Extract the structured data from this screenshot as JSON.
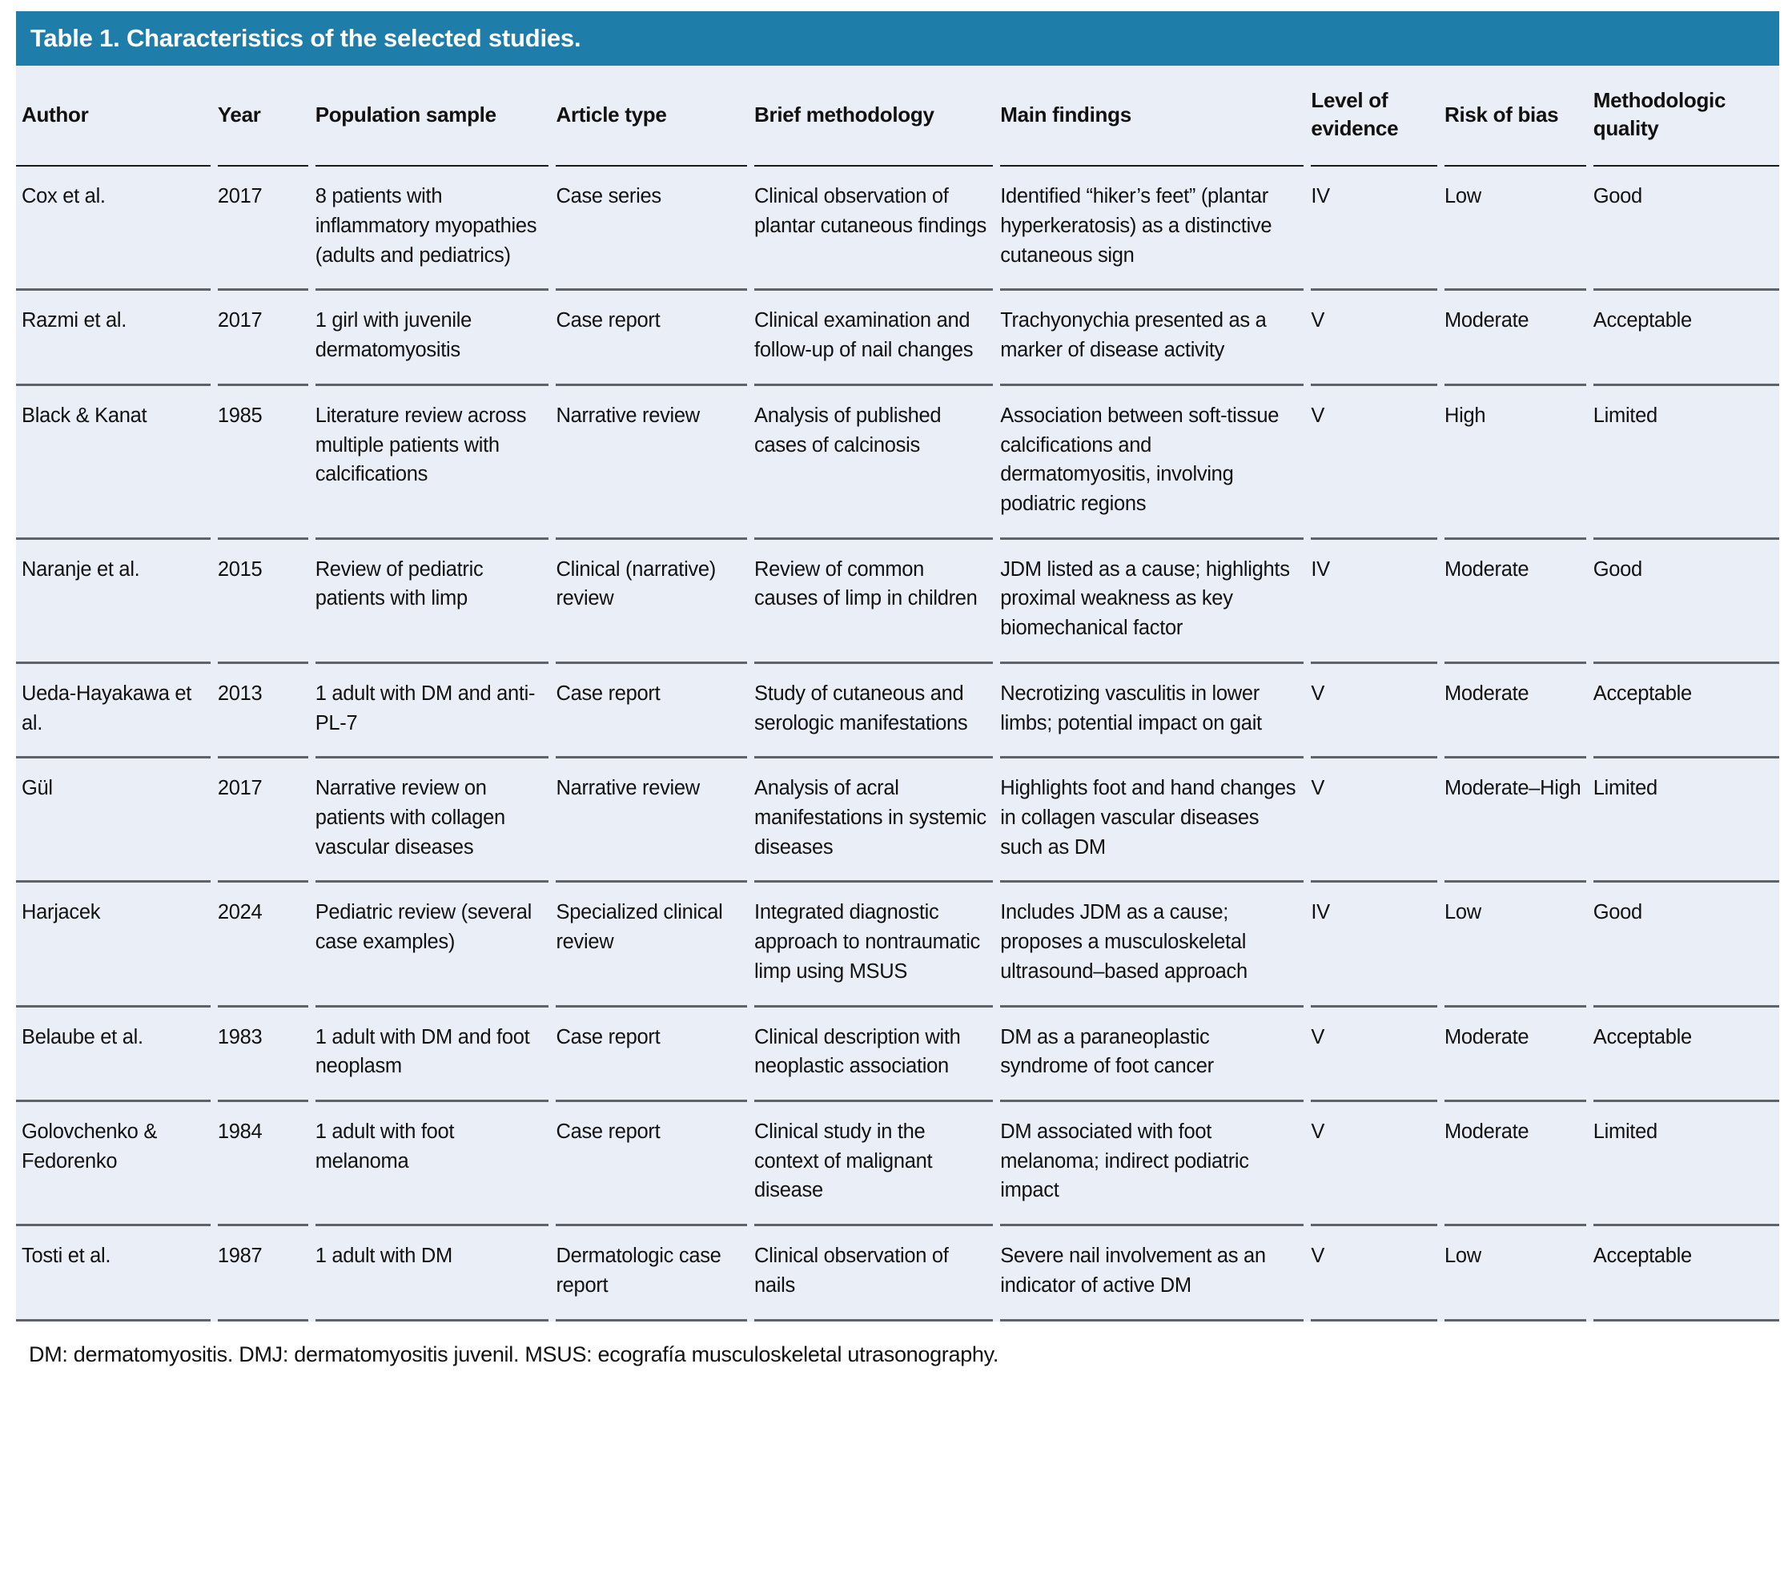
{
  "title": "Table 1. Characteristics of the selected studies.",
  "columns": [
    "Author",
    "Year",
    "Population sample",
    "Article type",
    "Brief methodology",
    "Main findings",
    "Level of evidence",
    "Risk of bias",
    "Methodologic quality"
  ],
  "row_keys": [
    "author",
    "year",
    "population",
    "article_type",
    "methodology",
    "findings",
    "evidence",
    "bias",
    "quality"
  ],
  "rows": [
    {
      "author": "Cox et al.",
      "year": "2017",
      "population": "8 patients with inflammatory myopathies (adults and pediatrics)",
      "article_type": "Case series",
      "methodology": "Clinical observation of plantar cutaneous findings",
      "findings": "Identified “hiker’s feet” (plantar hyperkeratosis) as a distinctive cutaneous sign",
      "evidence": "IV",
      "bias": "Low",
      "quality": "Good"
    },
    {
      "author": "Razmi et al.",
      "year": "2017",
      "population": "1 girl with juvenile dermatomyositis",
      "article_type": "Case report",
      "methodology": "Clinical examination and follow-up of nail changes",
      "findings": "Trachyonychia presented as a marker of disease activity",
      "evidence": "V",
      "bias": "Moderate",
      "quality": "Acceptable"
    },
    {
      "author": "Black & Kanat",
      "year": "1985",
      "population": "Literature review across multiple patients with calcifications",
      "article_type": "Narrative review",
      "methodology": "Analysis of published cases of calcinosis",
      "findings": "Association between soft-tissue calcifications and dermatomyositis, involving podiatric regions",
      "evidence": "V",
      "bias": "High",
      "quality": "Limited"
    },
    {
      "author": "Naranje et al.",
      "year": "2015",
      "population": "Review of pediatric patients with limp",
      "article_type": "Clinical (narrative) review",
      "methodology": "Review of common causes of limp in children",
      "findings": "JDM listed as a cause; highlights proximal weakness as key biomechanical factor",
      "evidence": "IV",
      "bias": "Moderate",
      "quality": "Good"
    },
    {
      "author": "Ueda-Hayakawa et al.",
      "year": "2013",
      "population": "1 adult with DM and anti-PL-7",
      "article_type": "Case report",
      "methodology": "Study of cutaneous and serologic manifestations",
      "findings": "Necrotizing vasculitis in lower limbs; potential impact on gait",
      "evidence": "V",
      "bias": "Moderate",
      "quality": "Acceptable"
    },
    {
      "author": "Gül",
      "year": "2017",
      "population": "Narrative review on patients with collagen vascular diseases",
      "article_type": "Narrative review",
      "methodology": "Analysis of acral manifestations in systemic diseases",
      "findings": "Highlights foot and hand changes in collagen vascular diseases such as DM",
      "evidence": "V",
      "bias": "Moderate–High",
      "quality": "Limited"
    },
    {
      "author": "Harjacek",
      "year": "2024",
      "population": "Pediatric review (several case examples)",
      "article_type": "Specialized clinical review",
      "methodology": "Integrated diagnostic approach to nontraumatic limp using MSUS",
      "findings": "Includes JDM as a cause; proposes a musculoskeletal ultrasound–based approach",
      "evidence": "IV",
      "bias": "Low",
      "quality": "Good"
    },
    {
      "author": "Belaube et al.",
      "year": "1983",
      "population": "1 adult with DM and foot neoplasm",
      "article_type": "Case report",
      "methodology": "Clinical description with neoplastic association",
      "findings": "DM as a paraneoplastic syndrome of foot cancer",
      "evidence": "V",
      "bias": "Moderate",
      "quality": "Acceptable"
    },
    {
      "author": "Golovchenko & Fedorenko",
      "year": "1984",
      "population": "1 adult with foot melanoma",
      "article_type": "Case report",
      "methodology": "Clinical study in the context of malignant disease",
      "findings": "DM associated with foot melanoma; indirect podiatric impact",
      "evidence": "V",
      "bias": "Moderate",
      "quality": "Limited"
    },
    {
      "author": "Tosti et al.",
      "year": "1987",
      "population": "1 adult with DM",
      "article_type": "Dermatologic case report",
      "methodology": "Clinical observation of nails",
      "findings": "Severe nail involvement as an indicator of active DM",
      "evidence": "V",
      "bias": "Low",
      "quality": "Acceptable"
    }
  ],
  "footnote": "DM: dermatomyositis. DMJ: dermatomyositis juvenil. MSUS: ecografía musculoskeletal utrasonography.",
  "colors": {
    "header_bg": "#1e7ea9",
    "table_bg": "#eaeef6",
    "divider": "#5f6368",
    "header_rule": "#1a1a1a",
    "text": "#111111"
  }
}
